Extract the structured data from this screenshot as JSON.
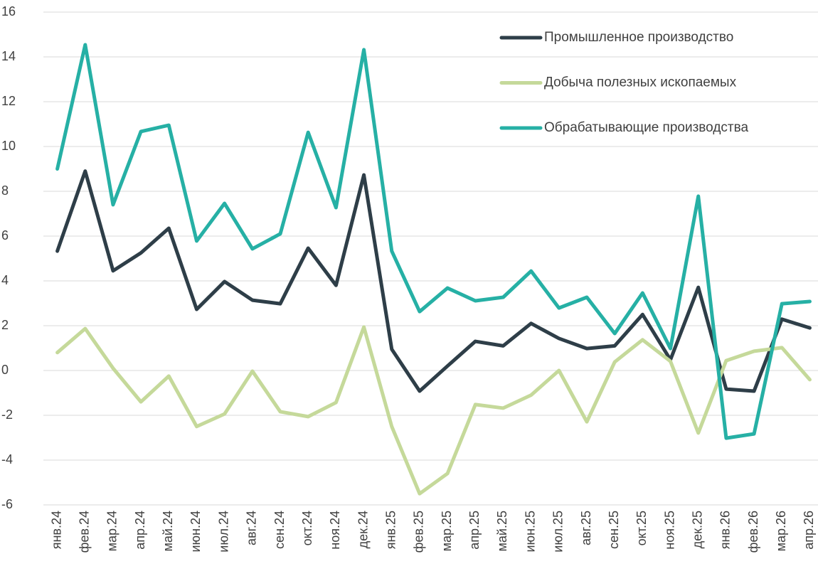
{
  "chart_data": {
    "type": "line",
    "categories": [
      "янв.24",
      "фев.24",
      "мар.24",
      "апр.24",
      "май.24",
      "июн.24",
      "июл.24",
      "авг.24",
      "сен.24",
      "окт.24",
      "ноя.24",
      "дек.24",
      "янв.25",
      "фев.25",
      "мар.25",
      "апр.25",
      "май.25",
      "июн.25",
      "июл.25",
      "авг.25",
      "сен.25",
      "окт.25",
      "ноя.25",
      "дек.25",
      "янв.26",
      "фев.26",
      "мар.26",
      "апр.26"
    ],
    "series": [
      {
        "name": "Промышленное производство",
        "color": "#2e3e48",
        "values": [
          5.33,
          8.9,
          4.45,
          5.25,
          6.35,
          2.73,
          3.97,
          3.14,
          2.98,
          5.46,
          3.8,
          8.73,
          0.95,
          -0.92,
          0.2,
          1.3,
          1.1,
          2.1,
          1.43,
          0.98,
          1.1,
          2.5,
          0.48,
          3.71,
          -0.83,
          -0.92,
          2.29,
          1.9
        ]
      },
      {
        "name": "Добыча полезных ископаемых",
        "color": "#c5d99a",
        "values": [
          0.8,
          1.87,
          0.1,
          -1.4,
          -0.25,
          -2.5,
          -1.94,
          -0.03,
          -1.84,
          -2.06,
          -1.43,
          1.94,
          -2.5,
          -5.5,
          -4.6,
          -1.52,
          -1.68,
          -1.1,
          0,
          -2.29,
          0.38,
          1.37,
          0.41,
          -2.79,
          0.44,
          0.86,
          1.02,
          -0.41
        ]
      },
      {
        "name": "Обрабатывающие производства",
        "color": "#26b0a5",
        "values": [
          9.0,
          14.54,
          7.4,
          10.67,
          10.95,
          5.78,
          7.46,
          5.43,
          6.1,
          10.63,
          7.27,
          14.32,
          5.33,
          2.63,
          3.68,
          3.11,
          3.27,
          4.44,
          2.79,
          3.27,
          1.65,
          3.46,
          0.98,
          7.78,
          -3.02,
          -2.83,
          2.98,
          3.08
        ]
      }
    ],
    "ylim": [
      -6,
      16
    ],
    "yticks": [
      -6,
      -4,
      -2,
      0,
      2,
      4,
      6,
      8,
      10,
      12,
      14,
      16
    ],
    "grid": true,
    "legend": "upper right"
  }
}
